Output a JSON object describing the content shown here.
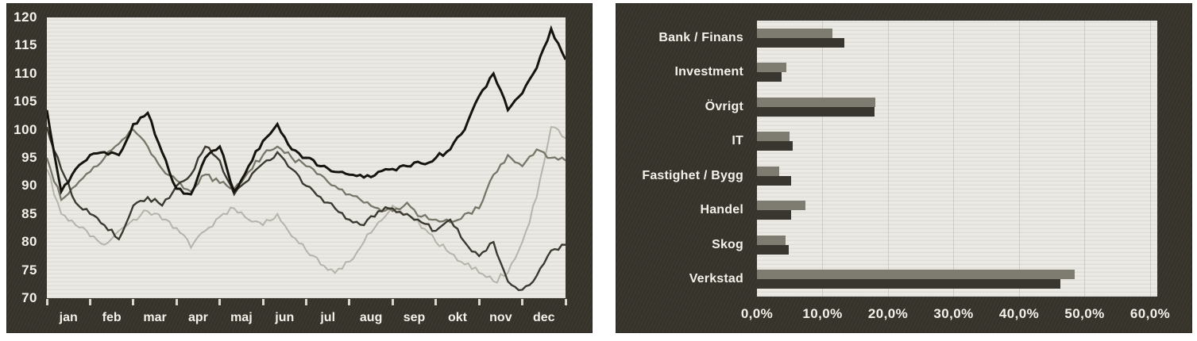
{
  "page": {
    "description": "Two scanned newspaper-style financial charts side by side",
    "colors": {
      "page_background": "#ffffff",
      "frame": "#37342c",
      "plot_background": "#e8e7e1",
      "label_text": "#f3f1e9",
      "tick_mark": "#d9d7ce",
      "grid_line": "#6e6c64"
    }
  },
  "chart_data": [
    {
      "type": "line",
      "title": "",
      "xlabel": "",
      "ylabel": "",
      "ylim": [
        70,
        120
      ],
      "y_ticks": [
        120,
        115,
        110,
        105,
        100,
        95,
        90,
        85,
        80,
        75,
        70
      ],
      "x_tick_labels": [
        "jan",
        "feb",
        "mar",
        "apr",
        "maj",
        "jun",
        "jul",
        "aug",
        "sep",
        "okt",
        "nov",
        "dec"
      ],
      "grid": false,
      "legend": "none",
      "sampling_note": "index values estimated from plot, ~3 samples per month, jan through dec",
      "series": [
        {
          "name": "light-gray-line",
          "color": "#b6b3aa",
          "stroke_width": 2.0,
          "jitter": 1.3,
          "values": [
            93,
            85,
            83,
            81,
            79.5,
            82,
            84,
            85.5,
            84,
            82.5,
            79,
            82,
            84.5,
            86,
            84,
            83,
            85,
            81,
            78.5,
            76,
            74.5,
            76.5,
            80,
            83.5,
            86.5,
            85,
            82.5,
            80,
            78,
            76,
            74.5,
            73,
            74.5,
            80,
            88,
            100.5,
            98.5
          ]
        },
        {
          "name": "medium-gray-line",
          "color": "#787569",
          "stroke_width": 2.3,
          "jitter": 1.0,
          "values": [
            95,
            87.5,
            90,
            92.5,
            95,
            97.5,
            100,
            97,
            93,
            91,
            89,
            92,
            90.5,
            89.5,
            92.5,
            95.5,
            97,
            95,
            93.5,
            92,
            90,
            88.5,
            87,
            86,
            85.5,
            87,
            84.5,
            84,
            83.5,
            85,
            86,
            92,
            95.5,
            93.5,
            96.5,
            95,
            94.5
          ]
        },
        {
          "name": "dark-gray-line",
          "color": "#3c3930",
          "stroke_width": 2.4,
          "jitter": 1.0,
          "values": [
            100.5,
            93,
            87,
            85,
            83,
            80.5,
            86.5,
            88,
            86.5,
            90,
            92,
            97,
            94.5,
            88.5,
            91,
            94,
            96,
            93,
            90,
            88,
            86,
            84,
            83,
            85.5,
            86,
            85,
            83.5,
            82,
            84,
            80,
            77.5,
            80,
            73,
            71.5,
            74,
            78.5,
            79.5
          ]
        },
        {
          "name": "black-line",
          "color": "#17140e",
          "stroke_width": 3.0,
          "jitter": 0.9,
          "values": [
            103.5,
            89,
            93,
            95.5,
            96,
            95.5,
            101,
            103,
            96,
            89.5,
            88.5,
            95,
            97,
            89,
            93.5,
            98,
            101,
            96.5,
            95,
            93.5,
            92.5,
            92,
            91.5,
            92.5,
            93,
            93.5,
            94,
            95,
            96.5,
            100,
            106,
            110,
            103.5,
            106.5,
            111,
            118,
            112.5
          ]
        }
      ]
    },
    {
      "type": "bar",
      "orientation": "horizontal",
      "title": "",
      "xlabel": "",
      "ylabel": "",
      "categories": [
        "Bank / Finans",
        "Investment",
        "Övrigt",
        "IT",
        "Fastighet / Bygg",
        "Handel",
        "Skog",
        "Verkstad"
      ],
      "series": [
        {
          "name": "upper-gray-bar",
          "color": "#7e7b71",
          "values": [
            11.5,
            4.5,
            18.0,
            5.0,
            3.4,
            7.4,
            4.4,
            48.5
          ]
        },
        {
          "name": "lower-dark-bar",
          "color": "#393630",
          "values": [
            13.3,
            3.8,
            17.9,
            5.5,
            5.2,
            5.2,
            4.8,
            46.3
          ]
        }
      ],
      "x_tick_labels": [
        "0,0%",
        "10,0%",
        "20,0%",
        "30,0%",
        "40,0%",
        "50,0%",
        "60,0%"
      ],
      "x_tick_values": [
        0,
        10,
        20,
        30,
        40,
        50,
        60
      ],
      "xlim": [
        0,
        60
      ],
      "grid": true,
      "legend": "none"
    }
  ]
}
